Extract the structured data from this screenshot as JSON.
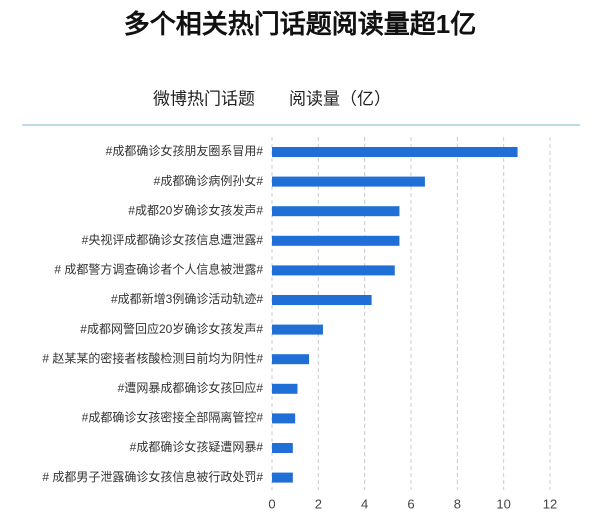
{
  "chart_data": {
    "type": "bar",
    "orientation": "horizontal",
    "title": "多个相关热门话题阅读量超1亿",
    "category_header": "微博热门话题",
    "value_header": "阅读量（亿）",
    "categories": [
      "#成都确诊女孩朋友圈系冒用#",
      "#成都确诊病例孙女#",
      "#成都20岁确诊女孩发声#",
      "#央视评成都确诊女孩信息遭泄露#",
      "# 成都警方调查确诊者个人信息被泄露#",
      "#成都新增3例确诊活动轨迹#",
      "#成都网警回应20岁确诊女孩发声#",
      "# 赵某某的密接者核酸检测目前均为阴性#",
      "#遭网暴成都确诊女孩回应#",
      "#成都确诊女孩密接全部隔离管控#",
      "#成都确诊女孩疑遭网暴#",
      "# 成都男子泄露确诊女孩信息被行政处罚#"
    ],
    "values": [
      10.6,
      6.6,
      5.5,
      5.5,
      5.3,
      4.3,
      2.2,
      1.6,
      1.1,
      1.0,
      0.9,
      0.9
    ],
    "color": "#1f6fd6",
    "xlim": [
      0,
      12
    ],
    "xticks": [
      0,
      2,
      4,
      6,
      8,
      10,
      12
    ],
    "grid": true
  }
}
